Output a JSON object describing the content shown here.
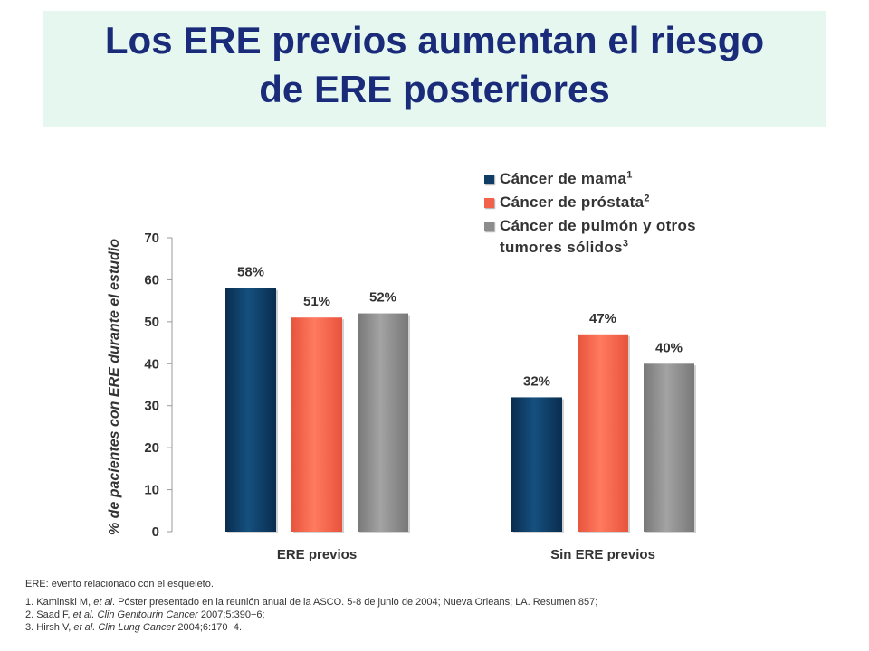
{
  "title": {
    "line1": "Los ERE previos aumentan el riesgo",
    "line2": "de ERE posteriores"
  },
  "colors": {
    "title_text": "#1a2b7a",
    "title_bg": "#e5f7ef",
    "breast": "#0f3d66",
    "prostate": "#f2614a",
    "lung": "#8c8c8c",
    "label_text": "#333333"
  },
  "legend": [
    {
      "label": "Cáncer de mama",
      "sup": "1",
      "color": "#0f3d66",
      "icon": "legend-swatch"
    },
    {
      "label": "Cáncer de próstata",
      "sup": "2",
      "color": "#f2614a",
      "icon": "legend-swatch"
    },
    {
      "label": "Cáncer de pulmón y otros tumores sólidos",
      "sup": "3",
      "color": "#8c8c8c",
      "icon": "legend-swatch"
    }
  ],
  "chart_data": {
    "type": "bar",
    "categories": [
      "ERE previos",
      "Sin ERE previos"
    ],
    "series": [
      {
        "name": "Cáncer de mama",
        "values": [
          58,
          32
        ]
      },
      {
        "name": "Cáncer de próstata",
        "values": [
          51,
          47
        ]
      },
      {
        "name": "Cáncer de pulmón y otros tumores sólidos",
        "values": [
          52,
          40
        ]
      }
    ],
    "data_labels": [
      [
        "58%",
        "32%"
      ],
      [
        "51%",
        "47%"
      ],
      [
        "52%",
        "40%"
      ]
    ],
    "ylabel": "% de pacientes con ERE durante el estudio",
    "xlabel": "",
    "ylim": [
      0,
      70
    ],
    "yticks": [
      0,
      10,
      20,
      30,
      40,
      50,
      60,
      70
    ],
    "grid": false,
    "legend_position": "top-right"
  },
  "footnotes": {
    "abbreviation": "ERE: evento relacionado con el esqueleto.",
    "refs": [
      {
        "num": "1.",
        "author": "Kaminski M,",
        "etal": "et al",
        "rest": ". Póster presentado en la reunión anual de la ASCO. 5-8 de junio de 2004; Nueva Orleans; LA. Resumen 857;",
        "journal": ""
      },
      {
        "num": "2.",
        "author": "Saad F,",
        "etal": "et al.",
        "rest": " 2007;5:390−6;",
        "journal": "Clin Genitourin Cancer"
      },
      {
        "num": "3.",
        "author": "Hirsh V,",
        "etal": "et al.",
        "rest": " 2004;6:170−4.",
        "journal": "Clin Lung Cancer"
      }
    ]
  }
}
